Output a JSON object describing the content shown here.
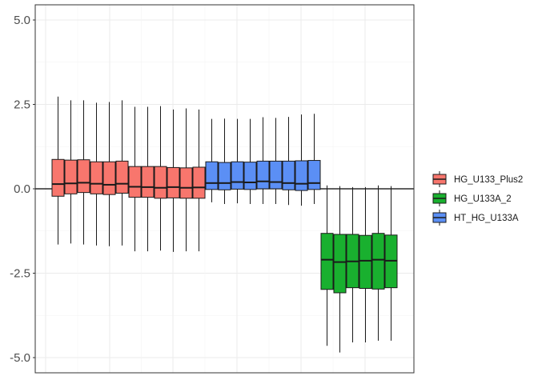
{
  "chart_data": {
    "type": "boxplot",
    "title": "",
    "xlabel": "",
    "ylabel": "",
    "ylim": [
      -5.45,
      5.45
    ],
    "yticks": [
      -5.0,
      -2.5,
      0.0,
      2.5,
      5.0
    ],
    "ytick_labels": [
      "-5.0",
      "-2.5",
      "0.0",
      "2.5",
      "5.0"
    ],
    "grid": true,
    "legend_position": "right",
    "zero_line": true,
    "series": [
      {
        "name": "HG_U133_Plus2",
        "color": "#F8766D",
        "boxes": [
          {
            "lower": -1.65,
            "q1": -0.22,
            "median": 0.14,
            "q3": 0.87,
            "upper": 2.73
          },
          {
            "lower": -1.62,
            "q1": -0.15,
            "median": 0.16,
            "q3": 0.85,
            "upper": 2.62
          },
          {
            "lower": -1.65,
            "q1": -0.11,
            "median": 0.18,
            "q3": 0.86,
            "upper": 2.62
          },
          {
            "lower": -1.68,
            "q1": -0.15,
            "median": 0.15,
            "q3": 0.8,
            "upper": 2.55
          },
          {
            "lower": -1.7,
            "q1": -0.17,
            "median": 0.12,
            "q3": 0.8,
            "upper": 2.57
          },
          {
            "lower": -1.68,
            "q1": -0.13,
            "median": 0.15,
            "q3": 0.82,
            "upper": 2.62
          },
          {
            "lower": -1.85,
            "q1": -0.25,
            "median": 0.06,
            "q3": 0.66,
            "upper": 2.43
          },
          {
            "lower": -1.85,
            "q1": -0.25,
            "median": 0.05,
            "q3": 0.66,
            "upper": 2.43
          },
          {
            "lower": -1.83,
            "q1": -0.28,
            "median": 0.03,
            "q3": 0.66,
            "upper": 2.45
          },
          {
            "lower": -1.87,
            "q1": -0.27,
            "median": 0.05,
            "q3": 0.63,
            "upper": 2.35
          },
          {
            "lower": -1.85,
            "q1": -0.28,
            "median": 0.03,
            "q3": 0.62,
            "upper": 2.38
          },
          {
            "lower": -1.85,
            "q1": -0.28,
            "median": 0.04,
            "q3": 0.64,
            "upper": 2.35
          }
        ]
      },
      {
        "name": "HG_U133A_2",
        "color": "#19B02F",
        "boxes": [
          {
            "lower": -4.65,
            "q1": -2.98,
            "median": -2.1,
            "q3": -1.32,
            "upper": 0.1
          },
          {
            "lower": -4.85,
            "q1": -3.08,
            "median": -2.17,
            "q3": -1.35,
            "upper": 0.08
          },
          {
            "lower": -4.55,
            "q1": -2.93,
            "median": -2.15,
            "q3": -1.35,
            "upper": 0.05
          },
          {
            "lower": -4.55,
            "q1": -2.95,
            "median": -2.13,
            "q3": -1.38,
            "upper": 0.05
          },
          {
            "lower": -4.5,
            "q1": -2.97,
            "median": -2.1,
            "q3": -1.32,
            "upper": 0.1
          },
          {
            "lower": -4.5,
            "q1": -2.93,
            "median": -2.13,
            "q3": -1.37,
            "upper": 0.08
          }
        ]
      },
      {
        "name": "HT_HG_U133A",
        "color": "#5B8FF5",
        "boxes": [
          {
            "lower": -0.4,
            "q1": -0.02,
            "median": 0.17,
            "q3": 0.8,
            "upper": 2.07
          },
          {
            "lower": -0.45,
            "q1": -0.03,
            "median": 0.17,
            "q3": 0.78,
            "upper": 2.08
          },
          {
            "lower": -0.43,
            "q1": -0.01,
            "median": 0.2,
            "q3": 0.8,
            "upper": 2.07
          },
          {
            "lower": -0.45,
            "q1": -0.02,
            "median": 0.19,
            "q3": 0.79,
            "upper": 2.07
          },
          {
            "lower": -0.45,
            "q1": 0.0,
            "median": 0.22,
            "q3": 0.82,
            "upper": 2.12
          },
          {
            "lower": -0.45,
            "q1": 0.0,
            "median": 0.2,
            "q3": 0.82,
            "upper": 2.1
          },
          {
            "lower": -0.48,
            "q1": -0.03,
            "median": 0.17,
            "q3": 0.82,
            "upper": 2.13
          },
          {
            "lower": -0.5,
            "q1": -0.05,
            "median": 0.15,
            "q3": 0.83,
            "upper": 2.2
          },
          {
            "lower": -0.45,
            "q1": -0.02,
            "median": 0.17,
            "q3": 0.84,
            "upper": 2.22
          }
        ]
      }
    ],
    "x_order": [
      [
        0,
        0
      ],
      [
        0,
        1
      ],
      [
        0,
        2
      ],
      [
        0,
        3
      ],
      [
        0,
        4
      ],
      [
        0,
        5
      ],
      [
        0,
        6
      ],
      [
        0,
        7
      ],
      [
        0,
        8
      ],
      [
        0,
        9
      ],
      [
        0,
        10
      ],
      [
        0,
        11
      ],
      [
        2,
        0
      ],
      [
        2,
        1
      ],
      [
        2,
        2
      ],
      [
        2,
        3
      ],
      [
        2,
        4
      ],
      [
        2,
        5
      ],
      [
        2,
        6
      ],
      [
        2,
        7
      ],
      [
        2,
        8
      ],
      [
        1,
        0
      ],
      [
        1,
        1
      ],
      [
        1,
        2
      ],
      [
        1,
        3
      ],
      [
        1,
        4
      ],
      [
        1,
        5
      ]
    ]
  }
}
